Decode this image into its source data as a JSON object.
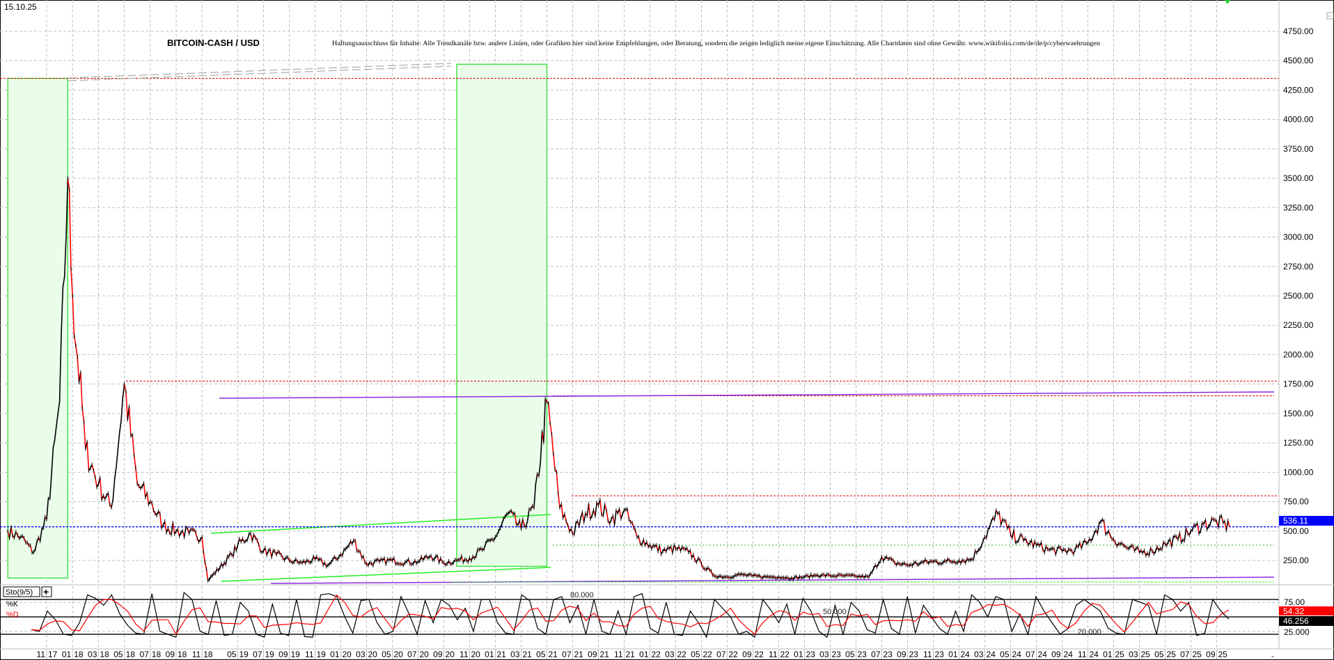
{
  "header": {
    "date": "15.10.25",
    "title": "BITCOIN-CASH / USD",
    "disclaimer": "Haftungsausschluss für Inhalte: Alle Trendkanäle bzw. andere Linien, oder Grafiken hier sind keine Empfehlungen, oder Beratung, sondern die zeigen lediglich meine eigene Einschätzung. Alle Chartdaten sind ohne Gewähr.  www.wikifolio.com/de/de/p/cyberwaehrungen"
  },
  "colors": {
    "up": "#000000",
    "down": "#ff0000",
    "grid": "#c0c0c0",
    "zone_fill": "#e9fde9",
    "zone_border": "#33dd33",
    "resistance": "#e00000",
    "trend": "#8a2be2",
    "current": "#0000ff",
    "channel": "#22ee22",
    "guide": "#b0b0b0"
  },
  "chart_data": [
    {
      "type": "line",
      "title": "BITCOIN-CASH / USD",
      "yaxis": {
        "ticks": [
          "250.00",
          "500.00",
          "750.00",
          "1000.00",
          "1250.00",
          "1500.00",
          "1750.00",
          "2000.00",
          "2250.00",
          "2500.00",
          "2750.00",
          "3000.00",
          "3250.00",
          "3500.00",
          "3750.00",
          "4000.00",
          "4250.00",
          "4500.00",
          "4750.00"
        ],
        "range": [
          80,
          5000
        ],
        "position": "right",
        "grid": true
      },
      "xaxis": {
        "ticks": [
          "11 17",
          "01 18",
          "03 18",
          "05 18",
          "07 18",
          "09 18",
          "11 18",
          "05 19",
          "07 19",
          "09 19",
          "11 19",
          "01 20",
          "03 20",
          "05 20",
          "07 20",
          "09 20",
          "11 20",
          "01 21",
          "03 21",
          "05 21",
          "07 21",
          "09 21",
          "11 21",
          "01 22",
          "03 22",
          "05 22",
          "07 22",
          "09 22",
          "11 22",
          "01 23",
          "03 23",
          "05 23",
          "07 23",
          "09 23",
          "11 23",
          "01 24",
          "03 24",
          "05 24",
          "07 24",
          "09 24",
          "11 24",
          "01 25",
          "03 25",
          "05 25",
          "07 25",
          "09 25"
        ],
        "grid": true
      },
      "series": [
        {
          "x": [
            "2017-08",
            "2017-09",
            "2017-10",
            "2017-11",
            "2017-12",
            "2017-12-20",
            "2018-01",
            "2018-02",
            "2018-03",
            "2018-04",
            "2018-05",
            "2018-06",
            "2018-07",
            "2018-08",
            "2018-09",
            "2018-10",
            "2018-11",
            "2018-12",
            "2019-04",
            "2019-05",
            "2019-06",
            "2019-07",
            "2019-08",
            "2019-09",
            "2019-10",
            "2019-11",
            "2019-12",
            "2020-01",
            "2020-02",
            "2020-03",
            "2020-04",
            "2020-05",
            "2020-06",
            "2020-07",
            "2020-08",
            "2020-09",
            "2020-10",
            "2020-11",
            "2020-12",
            "2021-01",
            "2021-02",
            "2021-03",
            "2021-04",
            "2021-05",
            "2021-06",
            "2021-07",
            "2021-08",
            "2021-09",
            "2021-10",
            "2021-11",
            "2021-12",
            "2022-01",
            "2022-02",
            "2022-03",
            "2022-04",
            "2022-05",
            "2022-06",
            "2022-07",
            "2022-08",
            "2022-09",
            "2022-10",
            "2022-11",
            "2022-12",
            "2023-01",
            "2023-02",
            "2023-03",
            "2023-04",
            "2023-05",
            "2023-06",
            "2023-07",
            "2023-08",
            "2023-09",
            "2023-10",
            "2023-11",
            "2023-12",
            "2024-01",
            "2024-02",
            "2024-03",
            "2024-04",
            "2024-05",
            "2024-06",
            "2024-07",
            "2024-08",
            "2024-09",
            "2024-10",
            "2024-11",
            "2024-12",
            "2025-01",
            "2025-02",
            "2025-03",
            "2025-04",
            "2025-05",
            "2025-06",
            "2025-07",
            "2025-08",
            "2025-09",
            "2025-10"
          ],
          "y": [
            500,
            450,
            320,
            600,
            1600,
            3500,
            2500,
            1200,
            900,
            700,
            1750,
            900,
            750,
            550,
            500,
            480,
            450,
            80,
            300,
            380,
            480,
            330,
            300,
            250,
            230,
            260,
            210,
            300,
            420,
            220,
            240,
            250,
            235,
            240,
            290,
            230,
            250,
            270,
            340,
            450,
            650,
            520,
            700,
            1600,
            700,
            480,
            650,
            720,
            600,
            680,
            450,
            380,
            330,
            350,
            320,
            220,
            120,
            110,
            130,
            118,
            110,
            110,
            100,
            110,
            125,
            120,
            120,
            115,
            110,
            280,
            230,
            210,
            230,
            240,
            240,
            250,
            260,
            450,
            650,
            470,
            420,
            380,
            340,
            330,
            340,
            400,
            580,
            430,
            360,
            320,
            330,
            390,
            430,
            500,
            560,
            580,
            536.11
          ]
        }
      ],
      "annotations": {
        "current_price": "536.11",
        "resistance_levels": [
          4350,
          1775,
          1650,
          800
        ],
        "highlight_zones": [
          {
            "from": "2017-08",
            "to": "2017-12-20",
            "low": 100,
            "high": 4350
          },
          {
            "from": "2020-10",
            "to": "2021-05",
            "low": 200,
            "high": 4470
          }
        ]
      }
    },
    {
      "type": "line",
      "title": "Sto(9/5)",
      "legend": [
        "%K",
        "%D"
      ],
      "legend_placement": "top-left",
      "yaxis": {
        "ticks": [
          "75.00",
          "25.000"
        ],
        "range": [
          0,
          100
        ],
        "levels": [
          80,
          50,
          20
        ]
      },
      "level_labels": [
        "80.000",
        "50.000",
        "20.000"
      ],
      "last_values": {
        "d": "54.32",
        "k": "46.256"
      },
      "k": [
        28,
        25,
        60,
        45,
        20,
        18,
        40,
        88,
        82,
        70,
        88,
        55,
        35,
        22,
        20,
        90,
        25,
        20,
        15,
        92,
        80,
        25,
        20,
        78,
        18,
        20,
        75,
        60,
        20,
        15,
        72,
        22,
        18,
        80,
        16,
        15,
        88,
        90,
        85,
        50,
        22,
        78,
        80,
        40,
        20,
        25,
        85,
        55,
        20,
        78,
        40,
        80,
        70,
        45,
        65,
        25,
        80,
        80,
        40,
        22,
        20,
        88,
        78,
        30,
        20,
        80,
        85,
        40,
        70,
        20,
        80,
        25,
        20,
        60,
        20,
        85,
        90,
        30,
        22,
        75,
        20,
        18,
        60,
        40,
        15,
        80,
        65,
        50,
        20,
        25,
        15,
        80,
        62,
        40,
        72,
        20,
        82,
        60,
        25,
        15,
        70,
        20,
        75,
        60,
        28,
        22,
        80,
        30,
        20,
        85,
        22,
        70,
        50,
        30,
        20,
        60,
        25,
        88,
        75,
        50,
        85,
        80,
        25,
        55,
        20,
        85,
        60,
        40,
        20,
        30,
        70,
        80,
        70,
        60,
        30,
        22,
        20,
        80,
        75,
        70,
        20,
        88,
        80,
        60,
        75,
        18,
        22,
        80,
        60,
        46.256
      ]
    }
  ],
  "controls": {
    "add_indicator": "+",
    "collapse": "−",
    "scroll_end": "-"
  }
}
